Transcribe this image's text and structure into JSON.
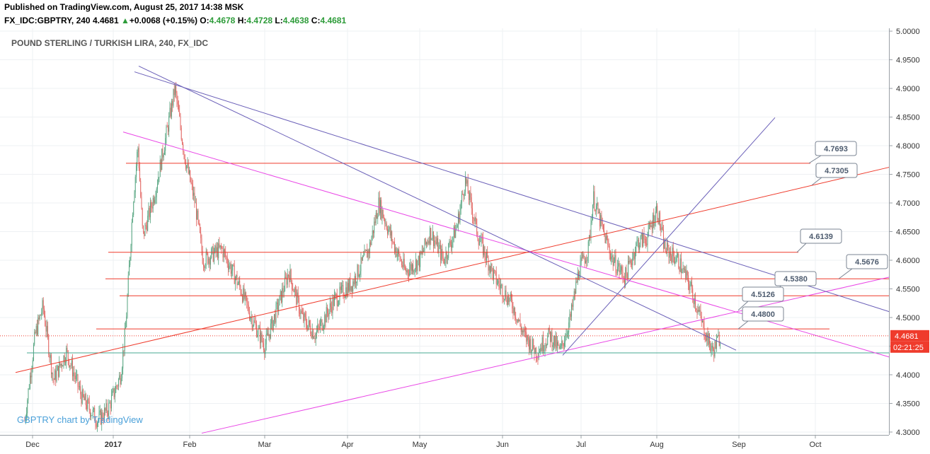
{
  "header": {
    "published": "Published on TradingView.com, August 25, 2017 14:38 MSK",
    "symbol": "FX_IDC:GBPTRY, 240",
    "last": "4.4681",
    "arrow": "▲",
    "change": "+0.0068 (+0.15%)",
    "o_label": "O:",
    "o": "4.4678",
    "h_label": "H:",
    "h": "4.4728",
    "l_label": "L:",
    "l": "4.4638",
    "c_label": "C:",
    "c": "4.4681"
  },
  "chart_data": {
    "type": "candlestick",
    "title": "POUND STERLING / TURKISH LIRA, 240, FX_IDC",
    "watermark": "GBPTRY chart by TradingView",
    "x_ticks": [
      "Dec",
      "2017",
      "Feb",
      "Mar",
      "Apr",
      "May",
      "Jun",
      "Jul",
      "Aug",
      "Sep",
      "Oct"
    ],
    "y_ticks": [
      "5.0000",
      "4.9500",
      "4.9000",
      "4.8500",
      "4.8000",
      "4.7500",
      "4.7000",
      "4.6500",
      "4.6000",
      "4.5500",
      "4.5000",
      "4.4500",
      "4.4000",
      "4.3500",
      "4.3000"
    ],
    "y_range": [
      4.295,
      5.005
    ],
    "last_price_label": "4.4681",
    "countdown_label": "02:21:25",
    "price_path": [
      [
        "2016-11-28",
        4.32
      ],
      [
        "2016-12-02",
        4.47
      ],
      [
        "2016-12-05",
        4.52
      ],
      [
        "2016-12-09",
        4.39
      ],
      [
        "2016-12-14",
        4.44
      ],
      [
        "2016-12-20",
        4.36
      ],
      [
        "2016-12-26",
        4.32
      ],
      [
        "2016-12-30",
        4.34
      ],
      [
        "2017-01-04",
        4.4
      ],
      [
        "2017-01-06",
        4.48
      ],
      [
        "2017-01-09",
        4.7
      ],
      [
        "2017-01-11",
        4.8
      ],
      [
        "2017-01-13",
        4.64
      ],
      [
        "2017-01-18",
        4.72
      ],
      [
        "2017-01-23",
        4.83
      ],
      [
        "2017-01-26",
        4.9
      ],
      [
        "2017-01-30",
        4.78
      ],
      [
        "2017-02-03",
        4.7
      ],
      [
        "2017-02-06",
        4.6
      ],
      [
        "2017-02-13",
        4.62
      ],
      [
        "2017-02-20",
        4.55
      ],
      [
        "2017-02-24",
        4.5
      ],
      [
        "2017-03-01",
        4.45
      ],
      [
        "2017-03-06",
        4.52
      ],
      [
        "2017-03-10",
        4.58
      ],
      [
        "2017-03-15",
        4.5
      ],
      [
        "2017-03-20",
        4.47
      ],
      [
        "2017-03-27",
        4.53
      ],
      [
        "2017-04-03",
        4.56
      ],
      [
        "2017-04-10",
        4.62
      ],
      [
        "2017-04-14",
        4.7
      ],
      [
        "2017-04-20",
        4.63
      ],
      [
        "2017-04-25",
        4.58
      ],
      [
        "2017-05-01",
        4.6
      ],
      [
        "2017-05-05",
        4.65
      ],
      [
        "2017-05-10",
        4.6
      ],
      [
        "2017-05-15",
        4.66
      ],
      [
        "2017-05-18",
        4.74
      ],
      [
        "2017-05-23",
        4.64
      ],
      [
        "2017-05-29",
        4.57
      ],
      [
        "2017-06-05",
        4.52
      ],
      [
        "2017-06-09",
        4.47
      ],
      [
        "2017-06-14",
        4.44
      ],
      [
        "2017-06-19",
        4.47
      ],
      [
        "2017-06-23",
        4.44
      ],
      [
        "2017-06-27",
        4.5
      ],
      [
        "2017-06-30",
        4.58
      ],
      [
        "2017-07-04",
        4.62
      ],
      [
        "2017-07-06",
        4.71
      ],
      [
        "2017-07-10",
        4.65
      ],
      [
        "2017-07-14",
        4.6
      ],
      [
        "2017-07-19",
        4.57
      ],
      [
        "2017-07-24",
        4.63
      ],
      [
        "2017-07-28",
        4.64
      ],
      [
        "2017-08-01",
        4.69
      ],
      [
        "2017-08-04",
        4.62
      ],
      [
        "2017-08-09",
        4.6
      ],
      [
        "2017-08-14",
        4.55
      ],
      [
        "2017-08-18",
        4.49
      ],
      [
        "2017-08-22",
        4.44
      ],
      [
        "2017-08-25",
        4.468
      ]
    ]
  },
  "drawings": {
    "levels": [
      {
        "price": 4.7693,
        "label": "4.7693"
      },
      {
        "price": 4.6139,
        "label": "4.6139"
      },
      {
        "price": 4.5676,
        "label": "4.5676"
      },
      {
        "price": 4.538,
        "label": "4.5380"
      },
      {
        "price": 4.48,
        "label": "4.4800"
      }
    ],
    "trend_labels": [
      "4.7305",
      "4.5126"
    ],
    "support_line_price": 4.4383,
    "colors": {
      "red": "#ef3b2c",
      "magenta": "#e946e6",
      "purple": "#6a5fb8",
      "teal": "#47a893",
      "up": "#51a27d",
      "down": "#e0605c",
      "label_border": "#7b8593",
      "label_text": "#4d5b6e"
    }
  }
}
